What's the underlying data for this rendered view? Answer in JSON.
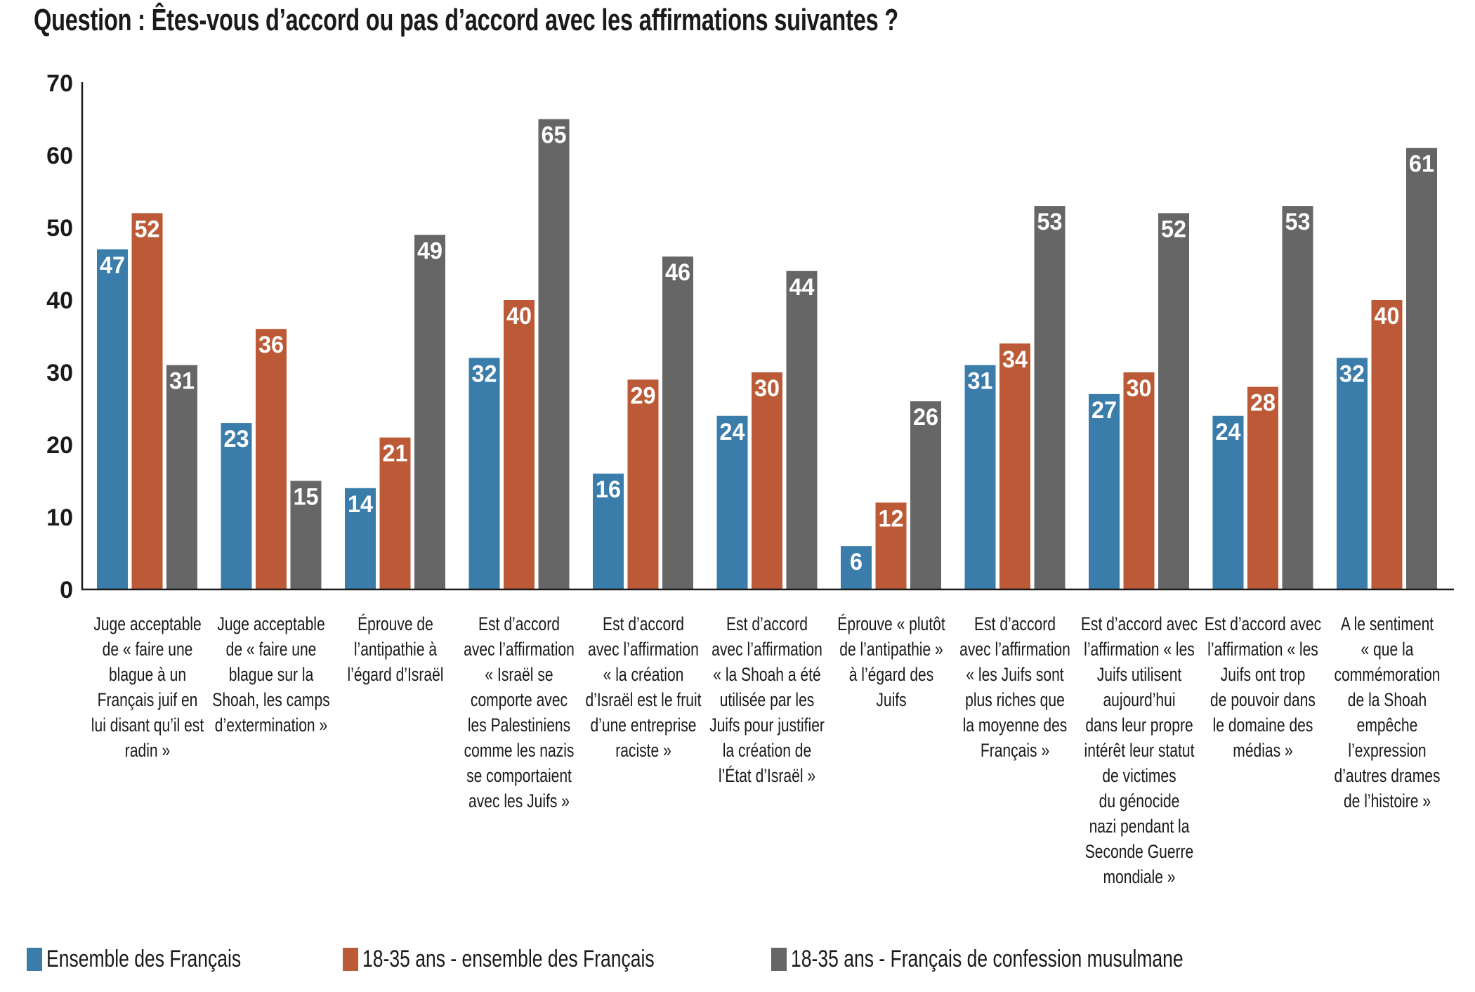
{
  "title": "Question : Êtes-vous d’accord ou pas d’accord avec les affirmations suivantes ?",
  "colors": {
    "ensemble": "#3a7dab",
    "jeunes": "#bc5a37",
    "musulmans": "#666666",
    "axis": "#1a1a1a",
    "label": "#ffffff"
  },
  "chart_data": {
    "type": "bar",
    "title": "Question : Êtes-vous d’accord ou pas d’accord avec les affirmations suivantes ?",
    "xlabel": "",
    "ylabel": "",
    "ylim": [
      0,
      70
    ],
    "yticks": [
      0,
      10,
      20,
      30,
      40,
      50,
      60,
      70
    ],
    "grid": false,
    "legend_position": "bottom",
    "categories": [
      "Juge acceptable\nde « faire une\nblague à un\nFrançais juif en\nlui disant qu’il est\nradin »",
      "Juge acceptable\nde « faire une\nblague sur la\nShoah, les camps\nd’extermination »",
      "Éprouve de\nl’antipathie à\nl’égard d’Israël",
      "Est d’accord\navec l’affirmation\n« Israël se\ncomporte avec\nles Palestiniens\ncomme les nazis\nse comportaient\navec les Juifs »",
      "Est d’accord\navec l’affirmation\n« la création\nd’Israël est le fruit\nd’une entreprise\nraciste »",
      "Est d’accord\navec l’affirmation\n« la Shoah a été\nutilisée par les\nJuifs pour justifier\nla création de\nl’État d’Israël »",
      "Éprouve « plutôt\nde l’antipathie »\nà l’égard des\nJuifs",
      "Est d’accord\navec l’affirmation\n« les Juifs sont\nplus riches que\nla moyenne des\nFrançais »",
      "Est d’accord avec\nl’affirmation « les\nJuifs utilisent\naujourd’hui\ndans leur propre\nintérêt leur statut\nde victimes\ndu génocide\nnazi pendant la\nSeconde Guerre\nmondiale »",
      "Est d’accord avec\nl’affirmation « les\nJuifs ont trop\nde pouvoir dans\nle domaine des\nmédias »",
      "A le sentiment\n« que la\ncommémoration\nde la Shoah\nempêche\nl’expression\nd’autres drames\nde l’histoire »"
    ],
    "series": [
      {
        "name": "Ensemble des Français",
        "color": "#3a7dab",
        "values": [
          47,
          23,
          14,
          32,
          16,
          24,
          6,
          31,
          27,
          24,
          32
        ]
      },
      {
        "name": "18-35 ans - ensemble des Français",
        "color": "#bc5a37",
        "values": [
          52,
          36,
          21,
          40,
          29,
          30,
          12,
          34,
          30,
          28,
          40
        ]
      },
      {
        "name": "18-35 ans - Français de confession musulmane",
        "color": "#666666",
        "values": [
          31,
          15,
          49,
          65,
          46,
          44,
          26,
          53,
          52,
          53,
          61
        ]
      }
    ]
  }
}
